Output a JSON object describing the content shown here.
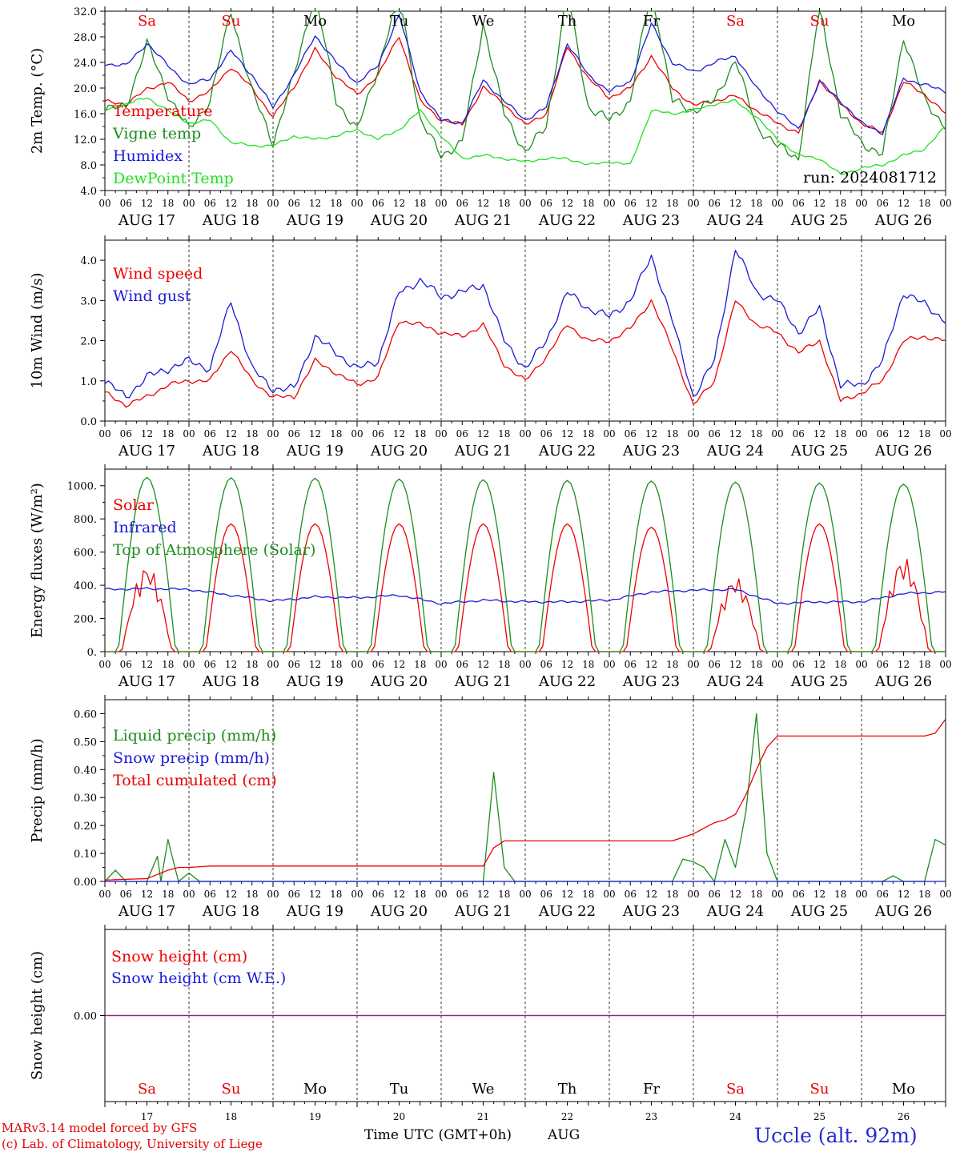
{
  "colors": {
    "red": "#ee0000",
    "green": "#1e8c1e",
    "lightgreen": "#22e022",
    "blue": "#1a1ad8",
    "purple": "#7a2a9a",
    "weekend": "#ee0000",
    "weekday": "#000000"
  },
  "days": [
    {
      "name": "Sa",
      "date": "AUG 17",
      "num": "17",
      "weekend": true
    },
    {
      "name": "Su",
      "date": "AUG 18",
      "num": "18",
      "weekend": true
    },
    {
      "name": "Mo",
      "date": "AUG 19",
      "num": "19",
      "weekend": false
    },
    {
      "name": "Tu",
      "date": "AUG 20",
      "num": "20",
      "weekend": false
    },
    {
      "name": "We",
      "date": "AUG 21",
      "num": "21",
      "weekend": false
    },
    {
      "name": "Th",
      "date": "AUG 22",
      "num": "22",
      "weekend": false
    },
    {
      "name": "Fr",
      "date": "AUG 23",
      "num": "23",
      "weekend": false
    },
    {
      "name": "Sa",
      "date": "AUG 24",
      "num": "24",
      "weekend": true
    },
    {
      "name": "Su",
      "date": "AUG 25",
      "num": "25",
      "weekend": true
    },
    {
      "name": "Mo",
      "date": "AUG 26",
      "num": "26",
      "weekend": false
    }
  ],
  "hour_labels": [
    "00",
    "06",
    "12",
    "18"
  ],
  "final_hour_label": "00",
  "footer": {
    "model": "MARv3.14 model forced by GFS",
    "lab": "(c) Lab. of Climatology, University of Liege",
    "xlabel": "Time UTC (GMT+0h)",
    "month": "AUG",
    "station": "Uccle (alt. 92m)"
  },
  "chart_data": [
    {
      "id": "temp",
      "type": "line",
      "ylabel": "2m Temp. (°C)",
      "ylim": [
        4.0,
        32.0
      ],
      "yticks": [
        4.0,
        8.0,
        12.0,
        16.0,
        20.0,
        24.0,
        28.0,
        32.0
      ],
      "ytick_labels": [
        "4.0",
        "8.0",
        "12.0",
        "16.0",
        "20.0",
        "24.0",
        "28.0",
        "32.0"
      ],
      "annotation": "run: 2024081712",
      "x_hours": [
        0,
        6,
        12,
        18,
        24,
        30,
        36,
        42,
        48,
        54,
        60,
        66,
        72,
        78,
        84,
        90,
        96,
        102,
        108,
        114,
        120,
        126,
        132,
        138,
        144,
        150,
        156,
        162,
        168,
        174,
        180,
        186,
        192,
        198,
        204,
        210,
        216,
        222,
        228,
        234,
        240
      ],
      "series": [
        {
          "name": "Temperature",
          "color": "red",
          "values": [
            17.9,
            17.5,
            19.8,
            21.0,
            18.0,
            19.5,
            23.3,
            20.0,
            15.5,
            20.2,
            26.0,
            21.8,
            19.0,
            22.0,
            28.2,
            18.0,
            15.0,
            14.3,
            20.1,
            17.5,
            14.2,
            16.0,
            26.5,
            21.5,
            18.5,
            20.0,
            25.0,
            20.0,
            17.3,
            18.0,
            18.8,
            16.5,
            14.5,
            13.0,
            21.2,
            17.5,
            14.5,
            13.0,
            21.0,
            19.0,
            16.0
          ]
        },
        {
          "name": "Vigne temp",
          "color": "green",
          "values": [
            16.8,
            17.0,
            27.0,
            19.0,
            13.5,
            18.0,
            32.0,
            19.5,
            11.5,
            22.0,
            35.0,
            18.0,
            13.5,
            23.0,
            35.0,
            15.0,
            9.5,
            11.5,
            30.0,
            16.0,
            10.0,
            14.0,
            35.0,
            17.0,
            15.0,
            18.0,
            36.0,
            18.0,
            16.5,
            18.0,
            24.5,
            14.0,
            11.0,
            9.0,
            33.0,
            16.0,
            11.5,
            9.5,
            28.0,
            18.0,
            14.0
          ]
        },
        {
          "name": "Humidex",
          "color": "blue",
          "values": [
            23.8,
            23.5,
            27.0,
            23.5,
            20.5,
            21.5,
            25.8,
            22.0,
            17.0,
            22.0,
            28.2,
            24.0,
            20.8,
            23.5,
            31.5,
            19.5,
            15.0,
            14.5,
            21.2,
            18.0,
            15.0,
            17.0,
            27.0,
            22.0,
            19.5,
            21.0,
            30.0,
            24.0,
            22.5,
            24.0,
            25.0,
            20.0,
            16.5,
            13.5,
            21.0,
            18.0,
            14.5,
            13.0,
            21.5,
            20.5,
            19.5
          ]
        },
        {
          "name": "DewPoint Temp",
          "color": "lightgreen",
          "values": [
            16.5,
            17.5,
            18.5,
            16.5,
            14.5,
            15.0,
            11.5,
            11.0,
            11.0,
            12.5,
            12.0,
            12.5,
            13.5,
            12.0,
            13.5,
            16.5,
            12.5,
            9.0,
            9.5,
            9.0,
            8.5,
            9.0,
            9.0,
            8.0,
            8.5,
            8.0,
            16.5,
            16.0,
            16.5,
            17.5,
            18.0,
            15.5,
            12.0,
            9.5,
            9.0,
            6.5,
            7.5,
            8.0,
            9.5,
            10.5,
            14.0
          ]
        }
      ]
    },
    {
      "id": "wind",
      "type": "line",
      "ylabel": "10m Wind (m/s)",
      "ylim": [
        0.0,
        4.5
      ],
      "yticks": [
        0.0,
        1.0,
        2.0,
        3.0,
        4.0
      ],
      "ytick_labels": [
        "0.0",
        "1.0",
        "2.0",
        "3.0",
        "4.0"
      ],
      "x_hours": [
        0,
        6,
        12,
        18,
        24,
        30,
        36,
        42,
        48,
        54,
        60,
        66,
        72,
        78,
        84,
        90,
        96,
        102,
        108,
        114,
        120,
        126,
        132,
        138,
        144,
        150,
        156,
        162,
        168,
        174,
        180,
        186,
        192,
        198,
        204,
        210,
        216,
        222,
        228,
        234,
        240
      ],
      "series": [
        {
          "name": "Wind speed",
          "color": "red",
          "values": [
            0.7,
            0.4,
            0.6,
            0.9,
            1.0,
            1.0,
            1.8,
            1.0,
            0.6,
            0.6,
            1.5,
            1.2,
            0.9,
            1.1,
            2.5,
            2.4,
            2.2,
            2.1,
            2.4,
            1.4,
            1.0,
            1.6,
            2.4,
            2.0,
            2.0,
            2.3,
            3.0,
            1.8,
            0.4,
            1.0,
            3.0,
            2.4,
            2.2,
            1.7,
            2.0,
            0.5,
            0.7,
            1.0,
            2.0,
            2.1,
            2.0
          ]
        },
        {
          "name": "Wind gust",
          "color": "blue",
          "values": [
            1.0,
            0.6,
            1.1,
            1.3,
            1.5,
            1.3,
            3.0,
            1.3,
            0.8,
            0.8,
            2.1,
            1.7,
            1.3,
            1.5,
            3.2,
            3.5,
            3.1,
            3.2,
            3.4,
            2.0,
            1.3,
            2.0,
            3.2,
            2.8,
            2.6,
            3.0,
            4.1,
            2.5,
            0.6,
            1.5,
            4.3,
            3.2,
            3.0,
            2.2,
            2.8,
            0.9,
            0.9,
            1.5,
            3.2,
            2.9,
            2.5
          ]
        }
      ]
    },
    {
      "id": "energy",
      "type": "line",
      "ylabel": "Energy fluxes (W/m²)",
      "ylim": [
        0,
        1100
      ],
      "yticks": [
        0,
        200,
        400,
        600,
        800,
        1000
      ],
      "ytick_labels": [
        "0.",
        "200.",
        "400.",
        "600.",
        "800.",
        "1000."
      ],
      "series": [
        {
          "name": "Solar",
          "color": "red",
          "daily_peak": [
            520,
            770,
            770,
            770,
            770,
            770,
            750,
            450,
            770,
            570
          ]
        },
        {
          "name": "Infrared",
          "color": "blue",
          "x_hours": [
            0,
            12,
            24,
            36,
            48,
            60,
            72,
            84,
            96,
            108,
            120,
            132,
            144,
            156,
            168,
            180,
            192,
            204,
            216,
            228,
            240
          ],
          "values": [
            375,
            380,
            375,
            340,
            305,
            330,
            325,
            340,
            290,
            310,
            300,
            300,
            310,
            360,
            370,
            375,
            290,
            300,
            300,
            350,
            360
          ]
        },
        {
          "name": "Top of Atmosphere (Solar)",
          "color": "green",
          "daily_peak": [
            1050,
            1048,
            1045,
            1040,
            1036,
            1032,
            1028,
            1022,
            1016,
            1010
          ]
        }
      ]
    },
    {
      "id": "precip",
      "type": "line",
      "ylabel": "Precip (mm/h)",
      "ylim": [
        0.0,
        0.65
      ],
      "yticks": [
        0.0,
        0.1,
        0.2,
        0.3,
        0.4,
        0.5,
        0.6
      ],
      "ytick_labels": [
        "0.00",
        "0.10",
        "0.20",
        "0.30",
        "0.40",
        "0.50",
        "0.60"
      ],
      "series": [
        {
          "name": "Liquid precip (mm/h)",
          "color": "green",
          "x_hours": [
            0,
            3,
            6,
            12,
            15,
            16,
            18,
            21,
            24,
            27,
            30,
            108,
            111,
            114,
            117,
            120,
            150,
            162,
            165,
            168,
            171,
            174,
            177,
            180,
            183,
            186,
            189,
            192,
            195,
            198,
            216,
            222,
            225,
            228,
            231,
            234,
            237,
            240
          ],
          "values": [
            0.0,
            0.04,
            0.0,
            0.0,
            0.09,
            0.0,
            0.15,
            0.0,
            0.03,
            0.0,
            0.0,
            0.0,
            0.39,
            0.05,
            0.0,
            0.0,
            0.0,
            0.0,
            0.08,
            0.07,
            0.05,
            0.0,
            0.15,
            0.05,
            0.25,
            0.6,
            0.1,
            0.0,
            0.0,
            0.0,
            0.0,
            0.0,
            0.02,
            0.0,
            0.0,
            0.0,
            0.15,
            0.13
          ]
        },
        {
          "name": "Snow precip (mm/h)",
          "color": "blue",
          "x_hours": [
            0,
            240
          ],
          "values": [
            0.0,
            0.0
          ]
        },
        {
          "name": "Total cumulated (cm)",
          "color": "red",
          "x_hours": [
            0,
            12,
            18,
            21,
            24,
            30,
            108,
            111,
            114,
            117,
            120,
            162,
            168,
            174,
            177,
            180,
            183,
            186,
            189,
            192,
            198,
            234,
            237,
            240
          ],
          "values": [
            0.005,
            0.01,
            0.04,
            0.05,
            0.05,
            0.055,
            0.055,
            0.12,
            0.145,
            0.145,
            0.145,
            0.145,
            0.17,
            0.21,
            0.22,
            0.24,
            0.31,
            0.4,
            0.48,
            0.52,
            0.52,
            0.52,
            0.53,
            0.58
          ]
        }
      ]
    },
    {
      "id": "snow",
      "type": "line",
      "ylabel": "Snow height (cm)",
      "ylim": [
        -1.0,
        1.0
      ],
      "yticks": [
        0.0
      ],
      "ytick_labels": [
        "0.00"
      ],
      "series": [
        {
          "name": "Snow height (cm)",
          "color": "red",
          "x_hours": [
            0,
            240
          ],
          "values": [
            0.0,
            0.0
          ]
        },
        {
          "name": "Snow height (cm W.E.)",
          "color": "blue",
          "x_hours": [
            0,
            240
          ],
          "values": [
            0.0,
            0.0
          ]
        }
      ]
    }
  ]
}
